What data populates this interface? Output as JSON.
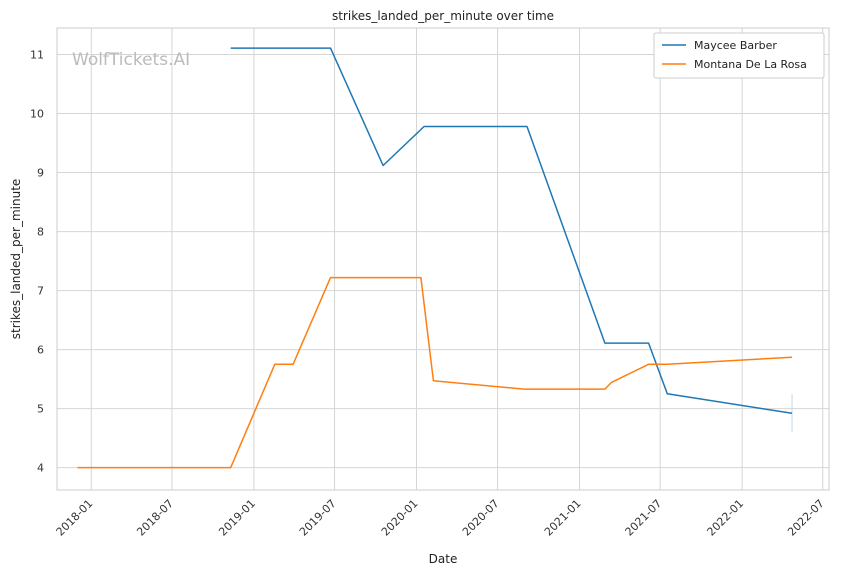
{
  "watermark": "WolfTickets.AI",
  "chart_data": {
    "type": "line",
    "title": "strikes_landed_per_minute over time",
    "xlabel": "Date",
    "ylabel": "strikes_landed_per_minute",
    "x_ticks": [
      "2018-01",
      "2018-07",
      "2019-01",
      "2019-07",
      "2020-01",
      "2020-07",
      "2021-01",
      "2021-07",
      "2022-01",
      "2022-07"
    ],
    "y_ticks": [
      4,
      5,
      6,
      7,
      8,
      9,
      10,
      11
    ],
    "xlim": [
      "2017-10-16",
      "2022-07-15"
    ],
    "ylim": [
      3.62,
      11.45
    ],
    "grid": true,
    "legend_position": "top-right",
    "series": [
      {
        "name": "Maycee Barber",
        "color": "#1f77b4",
        "points": [
          {
            "x": "2018-11-10",
            "y": 11.11
          },
          {
            "x": "2019-06-22",
            "y": 11.11
          },
          {
            "x": "2019-10-18",
            "y": 9.12
          },
          {
            "x": "2020-01-18",
            "y": 9.78
          },
          {
            "x": "2020-09-05",
            "y": 9.78
          },
          {
            "x": "2021-02-27",
            "y": 6.11
          },
          {
            "x": "2021-06-05",
            "y": 6.11
          },
          {
            "x": "2021-07-17",
            "y": 5.25
          },
          {
            "x": "2022-04-23",
            "y": 4.92
          }
        ]
      },
      {
        "name": "Montana De La Rosa",
        "color": "#ff7f0e",
        "points": [
          {
            "x": "2017-12-01",
            "y": 4.0
          },
          {
            "x": "2018-11-10",
            "y": 4.0
          },
          {
            "x": "2019-02-17",
            "y": 5.75
          },
          {
            "x": "2019-03-30",
            "y": 5.75
          },
          {
            "x": "2019-06-22",
            "y": 7.22
          },
          {
            "x": "2020-01-11",
            "y": 7.22
          },
          {
            "x": "2020-02-08",
            "y": 5.47
          },
          {
            "x": "2020-08-29",
            "y": 5.33
          },
          {
            "x": "2021-02-27",
            "y": 5.33
          },
          {
            "x": "2021-03-13",
            "y": 5.44
          },
          {
            "x": "2021-06-05",
            "y": 5.75
          },
          {
            "x": "2021-07-17",
            "y": 5.75
          },
          {
            "x": "2022-04-23",
            "y": 5.87
          }
        ]
      }
    ],
    "error_bar": {
      "x": "2022-04-23",
      "y_low": 4.6,
      "y_high": 5.25,
      "color": "#c8d8e4"
    }
  }
}
